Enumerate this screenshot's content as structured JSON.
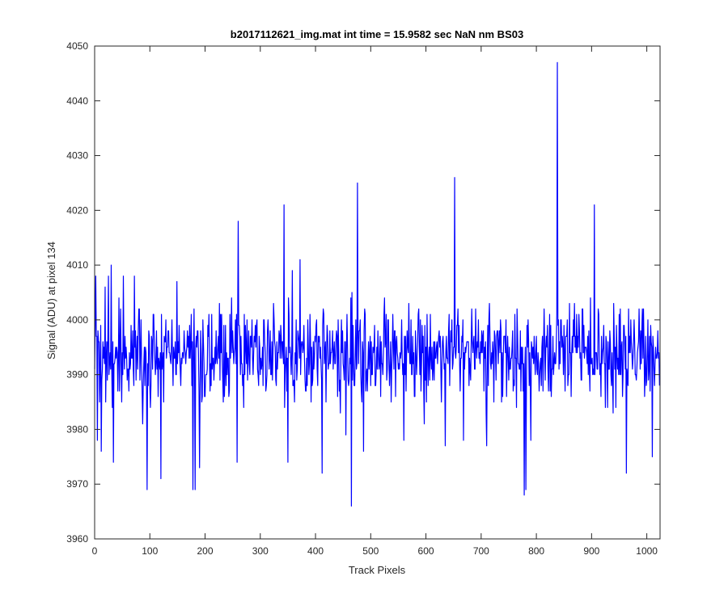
{
  "chart_data": {
    "type": "line",
    "title": "b2017112621_img.mat int time = 15.9582 sec  NaN nm BS03",
    "xlabel": "Track Pixels",
    "ylabel": "Signal (ADU) at pixel 134",
    "xlim": [
      0,
      1024
    ],
    "ylim": [
      3960,
      4050
    ],
    "xticks": [
      0,
      100,
      200,
      300,
      400,
      500,
      600,
      700,
      800,
      900,
      1000
    ],
    "yticks": [
      3960,
      3970,
      3980,
      3990,
      4000,
      4010,
      4020,
      4030,
      4040,
      4050
    ],
    "grid": false,
    "series": [
      {
        "color": "#0000ff",
        "noise": {
          "n_points": 1024,
          "baseline": 3994,
          "amplitude": 9,
          "seed": 2017,
          "clamp": [
            3966,
            4047
          ]
        },
        "features": [
          {
            "x": 5,
            "y": 3978
          },
          {
            "x": 12,
            "y": 3976
          },
          {
            "x": 25,
            "y": 4008
          },
          {
            "x": 30,
            "y": 4010
          },
          {
            "x": 34,
            "y": 3974
          },
          {
            "x": 72,
            "y": 4008
          },
          {
            "x": 95,
            "y": 3969
          },
          {
            "x": 120,
            "y": 3971
          },
          {
            "x": 178,
            "y": 3969
          },
          {
            "x": 182,
            "y": 3969
          },
          {
            "x": 190,
            "y": 3973
          },
          {
            "x": 258,
            "y": 3974
          },
          {
            "x": 260,
            "y": 4018
          },
          {
            "x": 343,
            "y": 4021
          },
          {
            "x": 350,
            "y": 3974
          },
          {
            "x": 372,
            "y": 4011
          },
          {
            "x": 412,
            "y": 3972
          },
          {
            "x": 455,
            "y": 3979
          },
          {
            "x": 465,
            "y": 3966
          },
          {
            "x": 476,
            "y": 4025
          },
          {
            "x": 560,
            "y": 3978
          },
          {
            "x": 635,
            "y": 3977
          },
          {
            "x": 652,
            "y": 4026
          },
          {
            "x": 668,
            "y": 3978
          },
          {
            "x": 710,
            "y": 3977
          },
          {
            "x": 778,
            "y": 3968
          },
          {
            "x": 781,
            "y": 3969
          },
          {
            "x": 790,
            "y": 3978
          },
          {
            "x": 838,
            "y": 4047
          },
          {
            "x": 905,
            "y": 4021
          },
          {
            "x": 963,
            "y": 3972
          },
          {
            "x": 1010,
            "y": 3975
          },
          {
            "x": 1020,
            "y": 3998
          }
        ]
      }
    ]
  }
}
